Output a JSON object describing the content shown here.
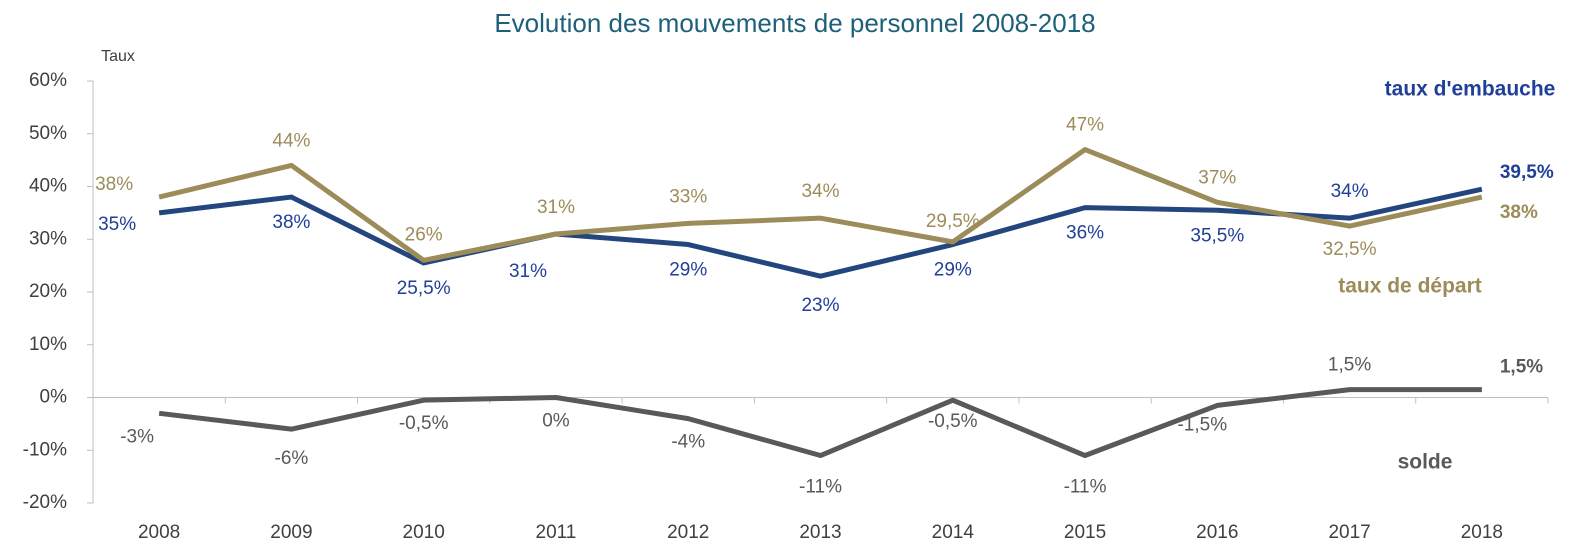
{
  "chart_data": {
    "type": "line",
    "title": "Evolution des mouvements de personnel 2008-2018",
    "y_label": "Taux",
    "categories": [
      "2008",
      "2009",
      "2010",
      "2011",
      "2012",
      "2013",
      "2014",
      "2015",
      "2016",
      "2017",
      "2018"
    ],
    "ylim": [
      -20,
      60
    ],
    "yticks": [
      {
        "value": -20,
        "label": "-20%"
      },
      {
        "value": -10,
        "label": "-10%"
      },
      {
        "value": 0,
        "label": "0%"
      },
      {
        "value": 10,
        "label": "10%"
      },
      {
        "value": 20,
        "label": "20%"
      },
      {
        "value": 30,
        "label": "30%"
      },
      {
        "value": 40,
        "label": "40%"
      },
      {
        "value": 50,
        "label": "50%"
      },
      {
        "value": 60,
        "label": "60%"
      }
    ],
    "grid": false,
    "series": [
      {
        "name": "taux d'embauche",
        "color": "#24467e",
        "values": [
          35,
          38,
          25.5,
          31,
          29,
          23,
          29,
          36,
          35.5,
          34,
          39.5
        ],
        "value_labels": [
          "35%",
          "38%",
          "25,5%",
          "31%",
          "29%",
          "23%",
          "29%",
          "36%",
          "35,5%",
          "34%",
          "39,5%"
        ]
      },
      {
        "name": "taux de départ",
        "color": "#9c8c5a",
        "values": [
          38,
          44,
          26,
          31,
          33,
          34,
          29.5,
          47,
          37,
          32.5,
          38
        ],
        "value_labels": [
          "38%",
          "44%",
          "26%",
          "31%",
          "33%",
          "34%",
          "29,5%",
          "47%",
          "37%",
          "32,5%",
          "38%"
        ]
      },
      {
        "name": "solde",
        "color": "#595959",
        "values": [
          -3,
          -6,
          -0.5,
          0,
          -4,
          -11,
          -0.5,
          -11,
          -1.5,
          1.5,
          1.5
        ],
        "value_labels": [
          "-3%",
          "-6%",
          "-0,5%",
          "0%",
          "-4%",
          "-11%",
          "-0,5%",
          "-11%",
          "-1,5%",
          "1,5%",
          "1,5%"
        ]
      }
    ]
  }
}
